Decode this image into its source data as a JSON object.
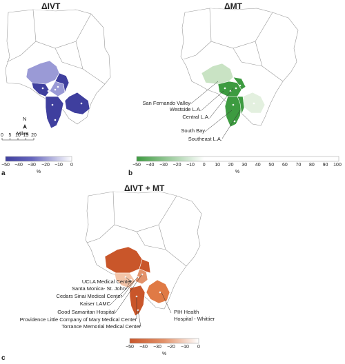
{
  "panels": [
    {
      "letter": "a",
      "title": "ΔIVT",
      "ticks": [
        "−50",
        "−40",
        "−30",
        "−20",
        "−10",
        "0"
      ],
      "unit": "%"
    },
    {
      "letter": "b",
      "title": "ΔMT",
      "ticks": [
        "−50",
        "−40",
        "−30",
        "−20",
        "−10",
        "0",
        "10",
        "20",
        "30",
        "40",
        "50",
        "60",
        "70",
        "80",
        "90",
        "100"
      ],
      "unit": "%"
    },
    {
      "letter": "c",
      "title": "ΔIVT + MT",
      "ticks": [
        "−50",
        "−40",
        "−30",
        "−20",
        "−10",
        "0"
      ],
      "unit": "%"
    }
  ],
  "compass": {
    "north": "N",
    "units": "Miles",
    "scale_ticks": [
      "0",
      "5",
      "10",
      "15",
      "20"
    ]
  },
  "regions": [
    "San Fernando Valley",
    "Westside L.A.",
    "Central L.A.",
    "South Bay",
    "Southeast L.A."
  ],
  "hospitals_left": [
    "UCLA Medical Center",
    "Santa Monica- St. John",
    "Cedars Sinai Medical Center",
    "Kaiser LAMC",
    "Good Samaritan Hospital",
    "Providence Little Company of Mary Medical Center",
    "Torrance Memorial Medical Center"
  ],
  "hospital_right": [
    "PIH Health",
    "Hospital - Whittier"
  ],
  "colors": {
    "ivt_dark": "#3f3f9e",
    "ivt_light": "#9a9ad6",
    "mt_dark": "#3d9b40",
    "mt_light": "#c9e3c4",
    "combo_dark": "#c9562a",
    "combo_light": "#f3c4a8"
  }
}
